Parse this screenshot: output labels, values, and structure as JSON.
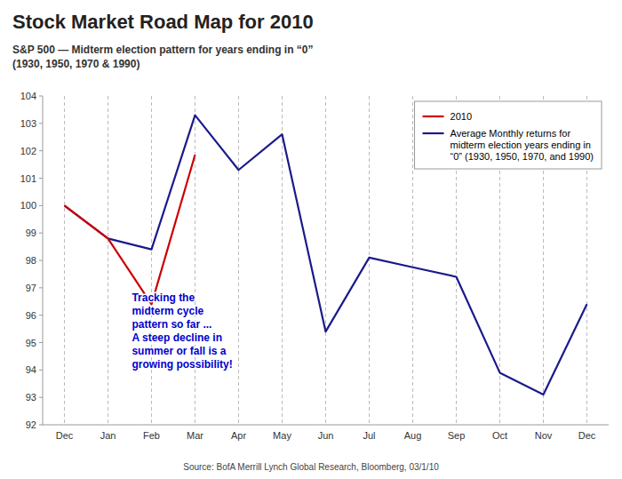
{
  "chart_data": {
    "type": "line",
    "title": "Stock Market Road Map for 2010",
    "subtitle": "S&P 500 — Midterm election pattern for years ending in “0”\n(1930, 1950, 1970 & 1990)",
    "source": "Source: BofA Merrill Lynch Global Research, Bloomberg, 03/1/10",
    "categories": [
      "Dec",
      "Jan",
      "Feb",
      "Mar",
      "Apr",
      "May",
      "Jun",
      "Jul",
      "Aug",
      "Sep",
      "Oct",
      "Nov",
      "Dec"
    ],
    "series": [
      {
        "name": "Average Monthly returns for\nmidterm election years ending in\n“0” (1930, 1950, 1970, and 1990)",
        "color": "#1a1a8c",
        "values": [
          100.0,
          98.8,
          98.4,
          103.3,
          101.3,
          102.6,
          95.4,
          98.1,
          97.75,
          97.4,
          93.9,
          93.1,
          96.4
        ]
      },
      {
        "name": "2010",
        "color": "#cc0000",
        "values": [
          100.0,
          98.8,
          96.4,
          101.85,
          null,
          null,
          null,
          null,
          null,
          null,
          null,
          null,
          null
        ]
      }
    ],
    "ylim": [
      92,
      104
    ],
    "yticks": [
      92,
      93,
      94,
      95,
      96,
      97,
      98,
      99,
      100,
      101,
      102,
      103,
      104
    ],
    "grid": true,
    "legend": "upper right",
    "annotations": [
      {
        "text": "Tracking the\nmidterm cycle\npattern so far ...\nA steep decline in\nsummer or fall is a\ngrowing possibility!",
        "x": 1.55,
        "y": 96.9,
        "color": "#0000cc"
      }
    ]
  }
}
